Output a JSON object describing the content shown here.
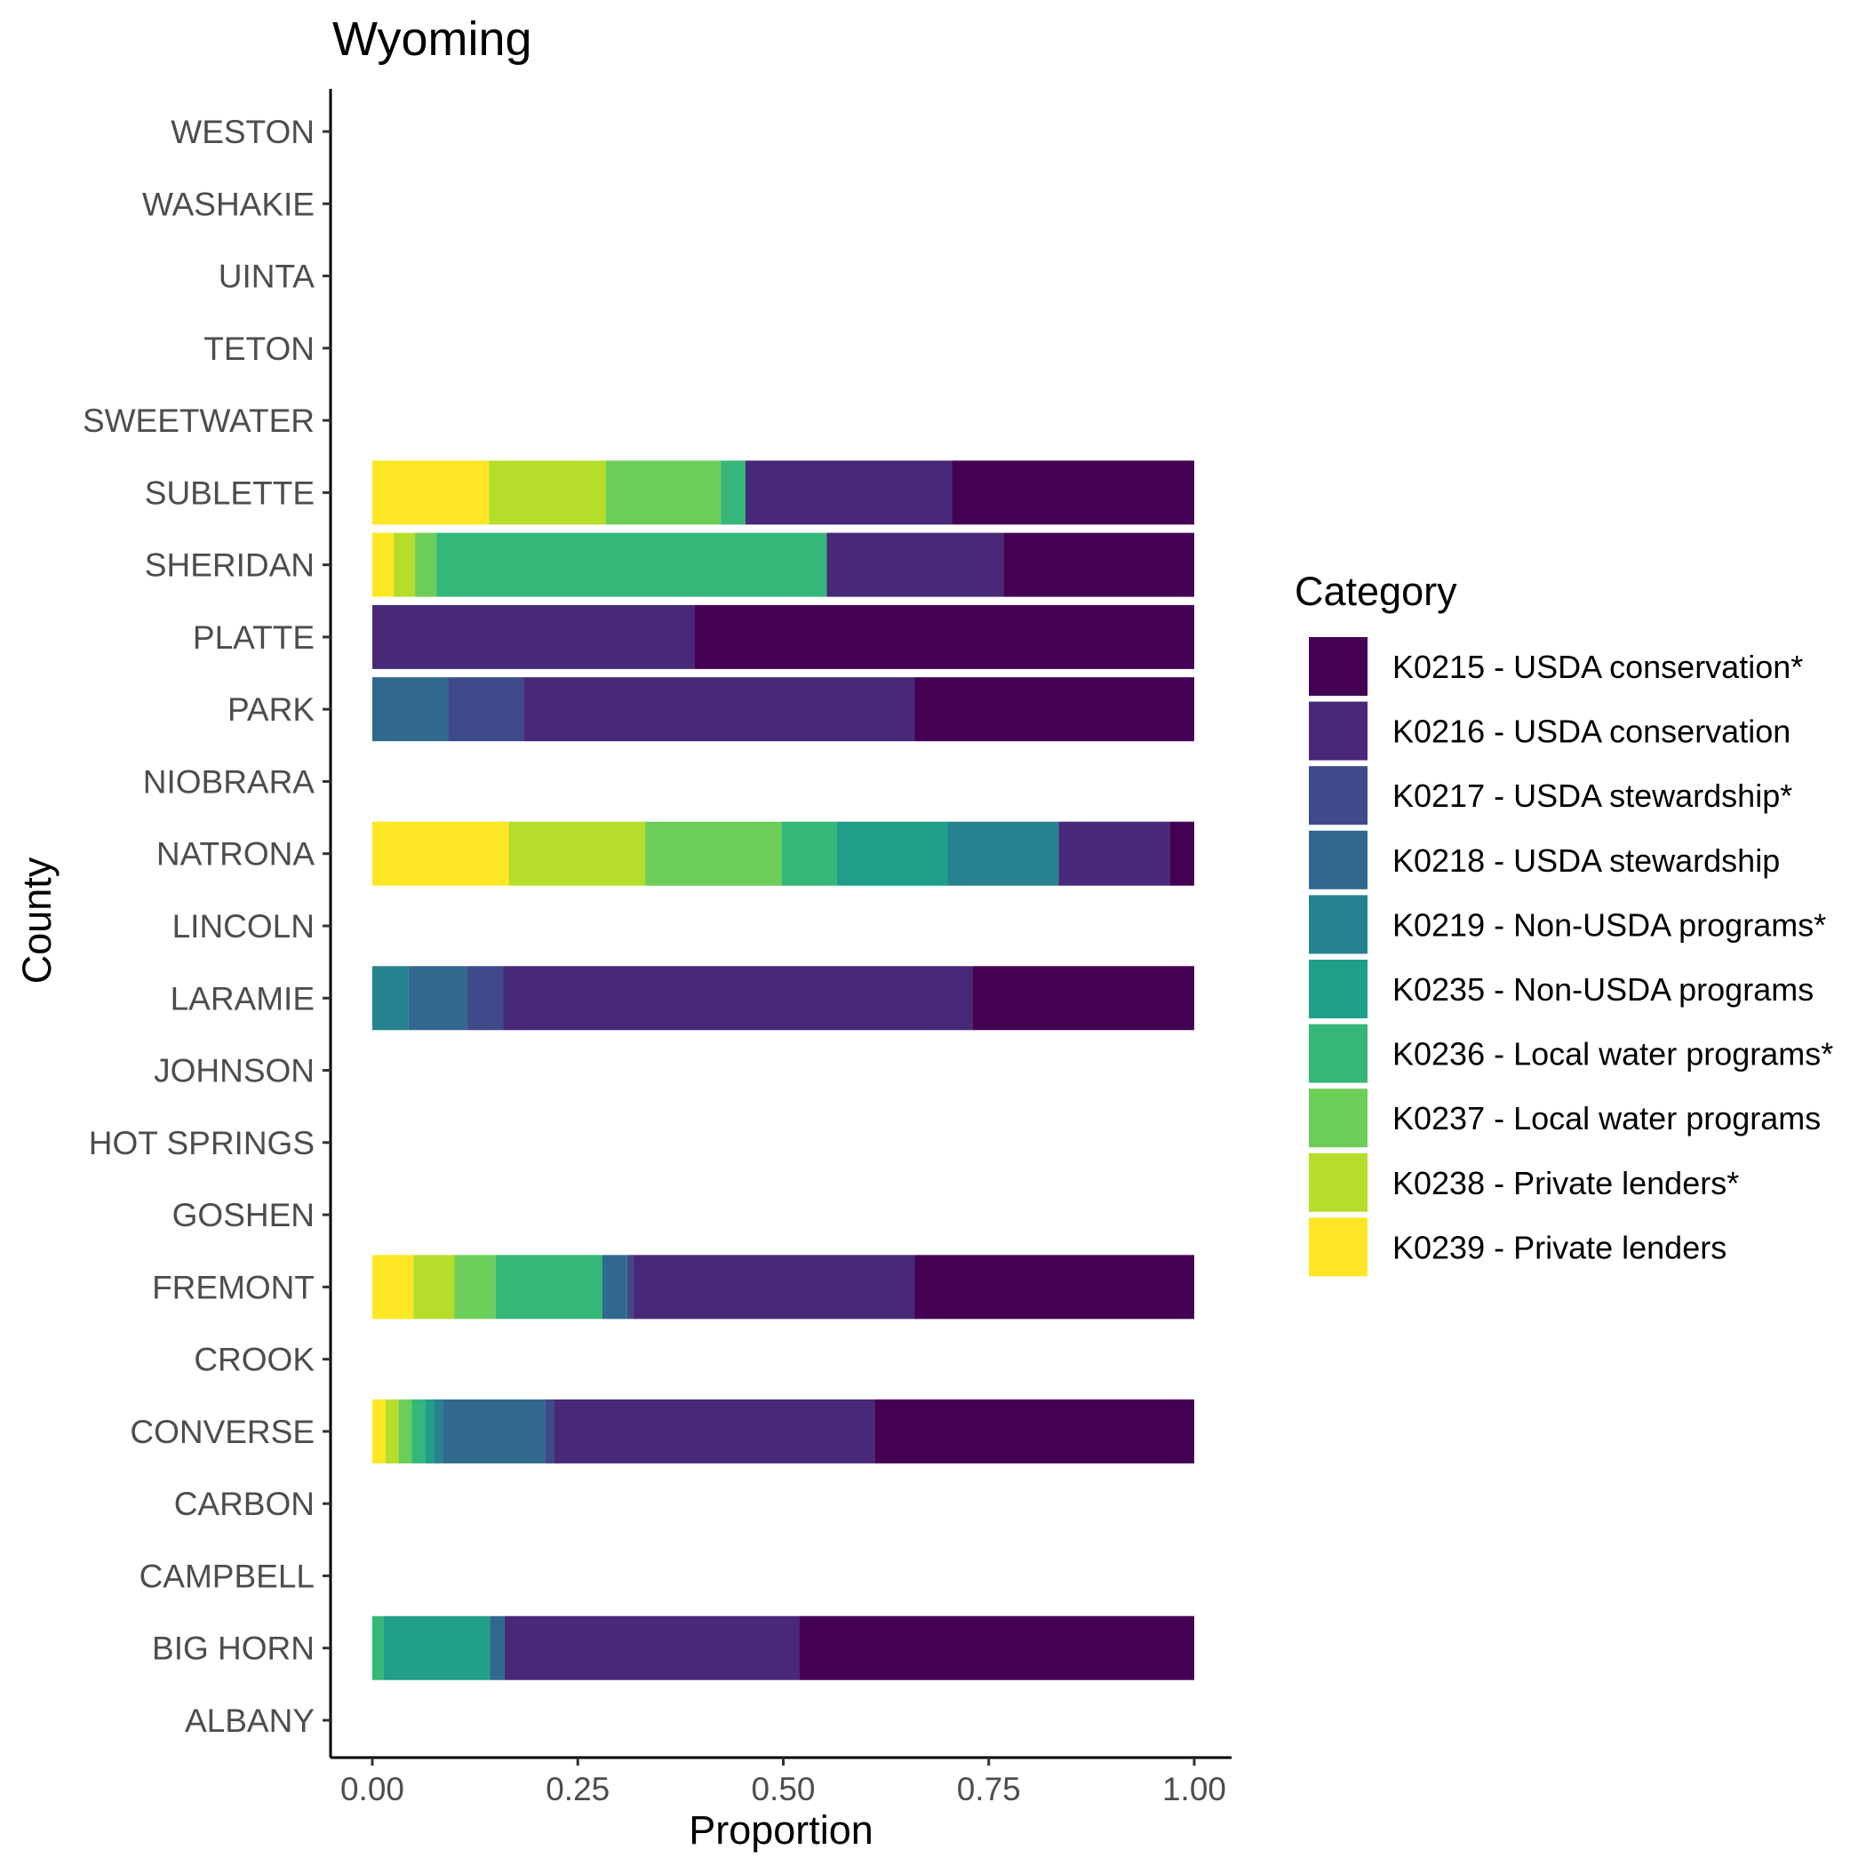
{
  "chart_data": {
    "type": "bar",
    "orientation": "horizontal",
    "stacked": true,
    "title": "Wyoming",
    "xlabel": "Proportion",
    "ylabel": "County",
    "xlim": [
      0,
      1
    ],
    "xticks": [
      "0.00",
      "0.25",
      "0.50",
      "0.75",
      "1.00"
    ],
    "grid": false,
    "legend_title": "Category",
    "legend_position": "right",
    "categories": [
      "ALBANY",
      "BIG HORN",
      "CAMPBELL",
      "CARBON",
      "CONVERSE",
      "CROOK",
      "FREMONT",
      "GOSHEN",
      "HOT SPRINGS",
      "JOHNSON",
      "LARAMIE",
      "LINCOLN",
      "NATRONA",
      "NIOBRARA",
      "PARK",
      "PLATTE",
      "SHERIDAN",
      "SUBLETTE",
      "SWEETWATER",
      "TETON",
      "UINTA",
      "WASHAKIE",
      "WESTON"
    ],
    "series": [
      {
        "name": "K0239 - Private lenders",
        "color": "#FDE725",
        "values": [
          0,
          0,
          0,
          0,
          0.016,
          0,
          0.05,
          0,
          0,
          0,
          0,
          0,
          0.166,
          0,
          0,
          0,
          0.026,
          0.142,
          0,
          0,
          0,
          0,
          0
        ]
      },
      {
        "name": "K0238 - Private lenders*",
        "color": "#B5DE2B",
        "values": [
          0,
          0,
          0,
          0,
          0.016,
          0,
          0.05,
          0,
          0,
          0,
          0,
          0,
          0.166,
          0,
          0,
          0,
          0.026,
          0.142,
          0,
          0,
          0,
          0,
          0
        ]
      },
      {
        "name": "K0237 - Local water programs",
        "color": "#6DCD59",
        "values": [
          0,
          0,
          0,
          0,
          0.016,
          0,
          0.05,
          0,
          0,
          0,
          0,
          0,
          0.166,
          0,
          0,
          0,
          0.026,
          0.14,
          0,
          0,
          0,
          0,
          0
        ]
      },
      {
        "name": "K0236 - Local water programs*",
        "color": "#35B779",
        "values": [
          0,
          0.014,
          0,
          0,
          0.016,
          0,
          0.13,
          0,
          0,
          0,
          0,
          0,
          0.067,
          0,
          0,
          0,
          0.475,
          0.03,
          0,
          0,
          0,
          0,
          0
        ]
      },
      {
        "name": "K0235 - Non-USDA programs",
        "color": "#1F9E89",
        "values": [
          0,
          0.129,
          0,
          0,
          0.011,
          0,
          0,
          0,
          0,
          0,
          0,
          0,
          0.135,
          0,
          0,
          0,
          0,
          0,
          0,
          0,
          0,
          0,
          0
        ]
      },
      {
        "name": "K0219 - Non-USDA programs*",
        "color": "#26828E",
        "values": [
          0,
          0,
          0,
          0,
          0.011,
          0,
          0,
          0,
          0,
          0,
          0.044,
          0,
          0.135,
          0,
          0,
          0,
          0,
          0,
          0,
          0,
          0,
          0,
          0
        ]
      },
      {
        "name": "K0218 - USDA stewardship",
        "color": "#31688E",
        "values": [
          0,
          0.018,
          0,
          0,
          0.124,
          0,
          0.03,
          0,
          0,
          0,
          0.071,
          0,
          0,
          0,
          0.092,
          0,
          0,
          0,
          0,
          0,
          0,
          0,
          0
        ]
      },
      {
        "name": "K0217 - USDA stewardship*",
        "color": "#3E4A89",
        "values": [
          0,
          0,
          0,
          0,
          0.011,
          0,
          0.007,
          0,
          0,
          0,
          0.044,
          0,
          0,
          0,
          0.092,
          0,
          0,
          0,
          0,
          0,
          0,
          0,
          0
        ]
      },
      {
        "name": "K0216 - USDA conservation",
        "color": "#482878",
        "values": [
          0,
          0.359,
          0,
          0,
          0.39,
          0,
          0.343,
          0,
          0,
          0,
          0.571,
          0,
          0.135,
          0,
          0.476,
          0.392,
          0.215,
          0.251,
          0,
          0,
          0,
          0,
          0
        ]
      },
      {
        "name": "K0215 - USDA conservation*",
        "color": "#440154",
        "values": [
          0,
          0.48,
          0,
          0,
          0.389,
          0,
          0.34,
          0,
          0,
          0,
          0.27,
          0,
          0.03,
          0,
          0.34,
          0.608,
          0.232,
          0.295,
          0,
          0,
          0,
          0,
          0
        ]
      }
    ],
    "legend_order": [
      "K0215 - USDA conservation*",
      "K0216 - USDA conservation",
      "K0217 - USDA stewardship*",
      "K0218 - USDA stewardship",
      "K0219 - Non-USDA programs*",
      "K0235 - Non-USDA programs",
      "K0236 - Local water programs*",
      "K0237 - Local water programs",
      "K0238 - Private lenders*",
      "K0239 - Private lenders"
    ]
  }
}
